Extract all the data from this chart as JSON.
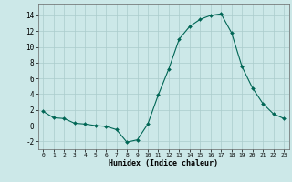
{
  "xlabel": "Humidex (Indice chaleur)",
  "background_color": "#cce8e8",
  "grid_color": "#aacccc",
  "line_color": "#006655",
  "marker_color": "#006655",
  "x": [
    0,
    1,
    2,
    3,
    4,
    5,
    6,
    7,
    8,
    9,
    10,
    11,
    12,
    13,
    14,
    15,
    16,
    17,
    18,
    19,
    20,
    21,
    22,
    23
  ],
  "y": [
    1.8,
    1.0,
    0.9,
    0.3,
    0.2,
    0.0,
    -0.1,
    -0.5,
    -2.1,
    -1.8,
    0.2,
    3.9,
    7.2,
    11.0,
    12.6,
    13.5,
    14.0,
    14.2,
    11.8,
    7.5,
    4.8,
    2.8,
    1.5,
    0.9
  ],
  "ylim": [
    -3,
    15.5
  ],
  "xlim": [
    -0.5,
    23.5
  ],
  "yticks": [
    -2,
    0,
    2,
    4,
    6,
    8,
    10,
    12,
    14
  ],
  "xticks": [
    0,
    1,
    2,
    3,
    4,
    5,
    6,
    7,
    8,
    9,
    10,
    11,
    12,
    13,
    14,
    15,
    16,
    17,
    18,
    19,
    20,
    21,
    22,
    23
  ],
  "figsize": [
    3.2,
    2.0
  ],
  "dpi": 100
}
